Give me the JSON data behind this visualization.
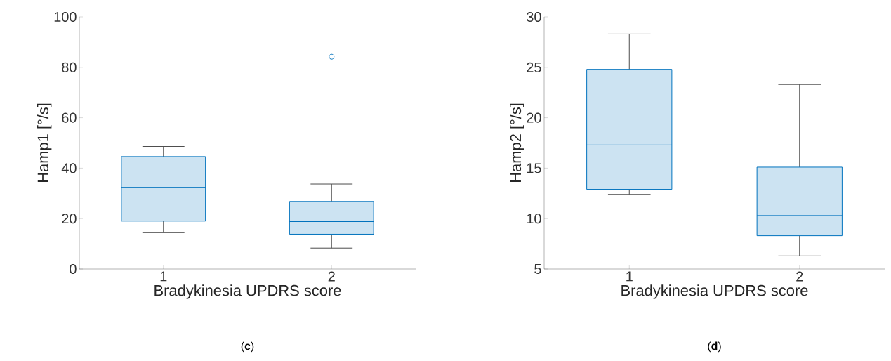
{
  "chart_data": [
    {
      "type": "box",
      "categories": [
        "1",
        "2"
      ],
      "xlabel": "Bradykinesia UPDRS score",
      "ylabel": "Hamp1 [°/s]",
      "color": "#0072bd",
      "marker": "circle",
      "grid": false,
      "boxes": [
        {
          "low": 14.4,
          "q1": 19.0,
          "median": 32.4,
          "q3": 44.6,
          "high": 48.6
        },
        {
          "low": 8.3,
          "q1": 13.8,
          "median": 18.8,
          "q3": 26.8,
          "high": 33.7,
          "outliers": [
            84.2
          ]
        }
      ],
      "ylim": [
        0,
        100
      ],
      "yticks": [
        0,
        20,
        40,
        60,
        80,
        100
      ],
      "annotations": [
        "(**c**)"
      ]
    },
    {
      "type": "box",
      "categories": [
        "1",
        "2"
      ],
      "xlabel": "Bradykinesia UPDRS score",
      "ylabel": "Hamp2 [°/s]",
      "color": "#0072bd",
      "marker": "circle",
      "grid": false,
      "boxes": [
        {
          "low": 12.4,
          "q1": 12.9,
          "median": 17.3,
          "q3": 24.8,
          "high": 28.3
        },
        {
          "low": 6.3,
          "q1": 8.3,
          "median": 10.3,
          "q3": 15.1,
          "high": 23.3
        }
      ],
      "ylim": [
        5,
        30
      ],
      "yticks": [
        5,
        10,
        15,
        20,
        25,
        30
      ],
      "annotations": [
        "(**d**)"
      ]
    }
  ]
}
